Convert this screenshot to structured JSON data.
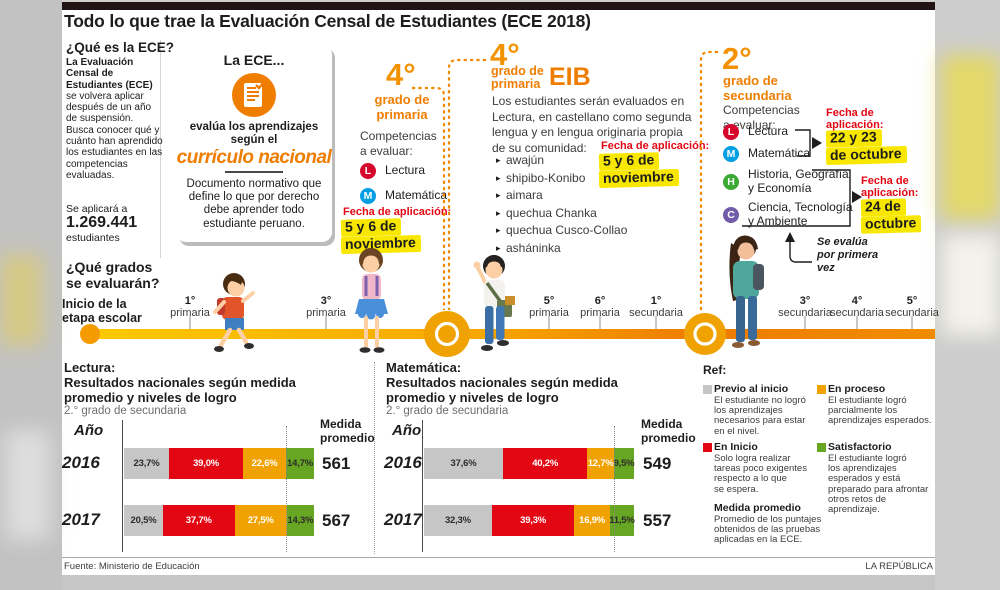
{
  "header": {
    "title": "Todo lo que trae la Evaluación Censal de Estudiantes (ECE 2018)"
  },
  "what_is": {
    "heading": "¿Qué es la ECE?",
    "bold_intro": "La Evaluación Censal de Estudiantes (ECE)",
    "body": " se volvera aplicar después de un año de suspensión. Busca conocer qué y cuánto han aprendido los estudiantes en las competencias evaluadas.",
    "apply_label": "Se aplicará a",
    "apply_number": "1.269.441",
    "apply_suffix": "estudiantes"
  },
  "ece_card": {
    "title": "La ECE...",
    "line1_lines": [
      "evalúa los aprendizajes",
      "según el"
    ],
    "highlight": "currículo nacional",
    "body": "Documento normativo que define lo que por derecho debe aprender todo estudiante peruano."
  },
  "grade4_primaria": {
    "number": "4°",
    "grade_lines": [
      "grado de",
      "primaria"
    ],
    "competencias_lines": [
      "Competencias",
      "a evaluar:"
    ],
    "subjects": [
      {
        "letter": "L",
        "label": "Lectura",
        "color": "#d6072c"
      },
      {
        "letter": "M",
        "label": "Matemática",
        "color": "#009fe3"
      }
    ],
    "fecha_label": "Fecha de aplicación:",
    "fecha_lines": [
      "5 y 6 de",
      "noviembre"
    ]
  },
  "grade4_eib": {
    "number": "4°",
    "grade_lines": [
      "grado de",
      "primaria"
    ],
    "tag": "EIB",
    "body": "Los estudiantes serán evaluados en Lectura, en castellano como segunda lengua y en lengua originaria propia de su comunidad:",
    "languages": [
      "awajún",
      "shipibo-Konibo",
      "aimara",
      "quechua Chanka",
      "quechua Cusco-Collao",
      "asháninka"
    ],
    "fecha_label": "Fecha de aplicación:",
    "fecha_lines": [
      "5 y 6 de",
      "noviembre"
    ]
  },
  "grade2_secundaria": {
    "number": "2°",
    "grade_lines": [
      "grado de",
      "secundaria"
    ],
    "competencias_lines": [
      "Competencias",
      "a evaluar:"
    ],
    "subjects": [
      {
        "letter": "L",
        "label_lines": [
          "Lectura"
        ],
        "color": "#d6072c"
      },
      {
        "letter": "M",
        "label_lines": [
          "Matemática"
        ],
        "color": "#009fe3"
      },
      {
        "letter": "H",
        "label_lines": [
          "Historia, Geografía",
          "y Economía"
        ],
        "color": "#3aaa35"
      },
      {
        "letter": "C",
        "label_lines": [
          "Ciencia, Tecnología",
          "y Ambiente"
        ],
        "color": "#705ca8"
      }
    ],
    "fecha1_lines": [
      "Fecha de",
      "aplicación:"
    ],
    "fecha1_dates": [
      "22 y 23",
      "de octubre"
    ],
    "fecha2_lines": [
      "Fecha de",
      "aplicación:"
    ],
    "fecha2_dates": [
      "24 de",
      "octubre"
    ],
    "first_time_lines": [
      "Se evalúa",
      "por primera",
      "vez"
    ]
  },
  "timeline": {
    "heading_lines": [
      "¿Qué grados",
      "se evaluarán?"
    ],
    "start_label_lines": [
      "Inicio de la",
      "etapa escolar"
    ],
    "stops": [
      {
        "grade": "1°",
        "name": "primaria"
      },
      {
        "grade": "3°",
        "name": "primaria"
      },
      {
        "grade": "5°",
        "name": "primaria"
      },
      {
        "grade": "6°",
        "name": "primaria"
      },
      {
        "grade": "1°",
        "name": "secundaria"
      },
      {
        "grade": "3°",
        "name": "secundaria"
      },
      {
        "grade": "4°",
        "name": "secundaria"
      },
      {
        "grade": "5°",
        "name": "secundaria"
      }
    ]
  },
  "chart_data": [
    {
      "type": "bar",
      "title_lines": [
        "Lectura:",
        "Resultados nacionales según medida",
        "promedio y  niveles de logro"
      ],
      "subtitle": "2.° grado de secundaria",
      "col_year": "Año",
      "col_value_lines": [
        "Medida",
        "promedio"
      ],
      "segments": [
        "Previo al inicio",
        "En inicio",
        "En proceso",
        "Satisfactorio"
      ],
      "colors": [
        "#c6c6c6",
        "#e30613",
        "#f0a202",
        "#67a622"
      ],
      "rows": [
        {
          "year": "2016",
          "values": [
            23.7,
            39.0,
            22.6,
            14.7
          ],
          "labels": [
            "23,7%",
            "39,0%",
            "22,6%",
            "14,7%"
          ],
          "value": "561"
        },
        {
          "year": "2017",
          "values": [
            20.5,
            37.7,
            27.5,
            14.3
          ],
          "labels": [
            "20,5%",
            "37,7%",
            "27,5%",
            "14,3%"
          ],
          "value": "567"
        }
      ],
      "xlabel": "",
      "ylabel": ""
    },
    {
      "type": "bar",
      "title_lines": [
        "Matemática:",
        "Resultados nacionales según medida",
        "promedio y  niveles de logro"
      ],
      "subtitle": "2.° grado de secundaria",
      "col_year": "Año",
      "col_value_lines": [
        "Medida",
        "promedio"
      ],
      "segments": [
        "Previo al inicio",
        "En inicio",
        "En proceso",
        "Satisfactorio"
      ],
      "colors": [
        "#c6c6c6",
        "#e30613",
        "#f0a202",
        "#67a622"
      ],
      "rows": [
        {
          "year": "2016",
          "values": [
            37.6,
            40.2,
            12.7,
            9.5
          ],
          "labels": [
            "37,6%",
            "40,2%",
            "12,7%",
            "9,5%"
          ],
          "value": "549"
        },
        {
          "year": "2017",
          "values": [
            32.3,
            39.3,
            16.9,
            11.5
          ],
          "labels": [
            "32,3%",
            "39,3%",
            "16,9%",
            "11,5%"
          ],
          "value": "557"
        }
      ],
      "xlabel": "",
      "ylabel": ""
    }
  ],
  "legend": {
    "heading": "Ref:",
    "items": [
      {
        "title": "Previo al inicio",
        "color": "#c6c6c6",
        "lines": [
          "El estudiante no logró",
          "los aprendizajes",
          "necesarios para estar",
          "en el nivel."
        ]
      },
      {
        "title": "En Inicio",
        "color": "#e30613",
        "lines": [
          "Solo logra realizar",
          "tareas poco exigentes",
          "respecto a lo que",
          "se espera."
        ]
      },
      {
        "title": "Medida promedio",
        "color": "",
        "lines": [
          "Promedio de los puntajes",
          "obtenidos de las pruebas",
          "aplicadas en la ECE."
        ]
      },
      {
        "title": "En proceso",
        "color": "#f0a202",
        "lines": [
          "El estudiante logró",
          "parcialmente los",
          "aprendizajes esperados."
        ]
      },
      {
        "title": "Satisfactorio",
        "color": "#67a622",
        "lines": [
          "El estudiante logró",
          "los aprendizajes",
          "esperados y está",
          "preparado para afrontar",
          "otros retos de aprendizaje."
        ]
      }
    ]
  },
  "footer": {
    "source": "Fuente: Ministerio de Educación",
    "brand": "LA REPÚBLICA"
  }
}
